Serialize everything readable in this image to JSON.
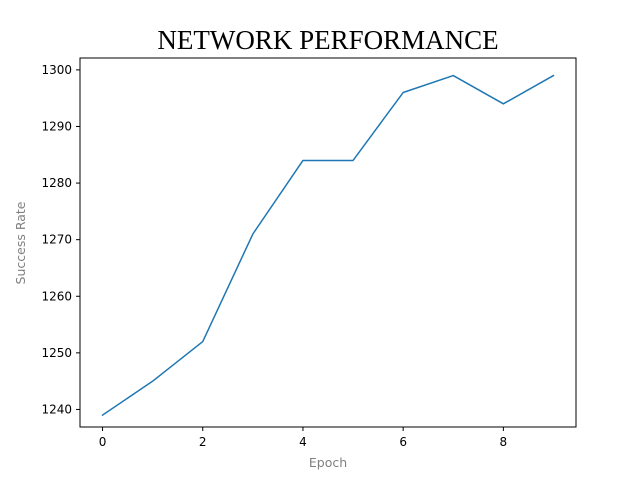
{
  "chart_data": {
    "type": "line",
    "title": "NETWORK PERFORMANCE",
    "xlabel": "Epoch",
    "ylabel": "Success Rate",
    "x": [
      0,
      1,
      2,
      3,
      4,
      5,
      6,
      7,
      8,
      9
    ],
    "series": [
      {
        "values": [
          1239,
          1245,
          1252,
          1271,
          1284,
          1284,
          1296,
          1299,
          1294,
          1299
        ]
      }
    ],
    "xlim": [
      -0.45,
      9.45
    ],
    "ylim": [
      1236.9,
      1302.1
    ],
    "xticks": [
      0,
      2,
      4,
      6,
      8
    ],
    "yticks": [
      1240,
      1250,
      1260,
      1270,
      1280,
      1290,
      1300
    ],
    "grid": false,
    "legend": "none",
    "line_color": "#1f77b4",
    "title_color": "#000000",
    "axis_label_color": "#808080"
  }
}
